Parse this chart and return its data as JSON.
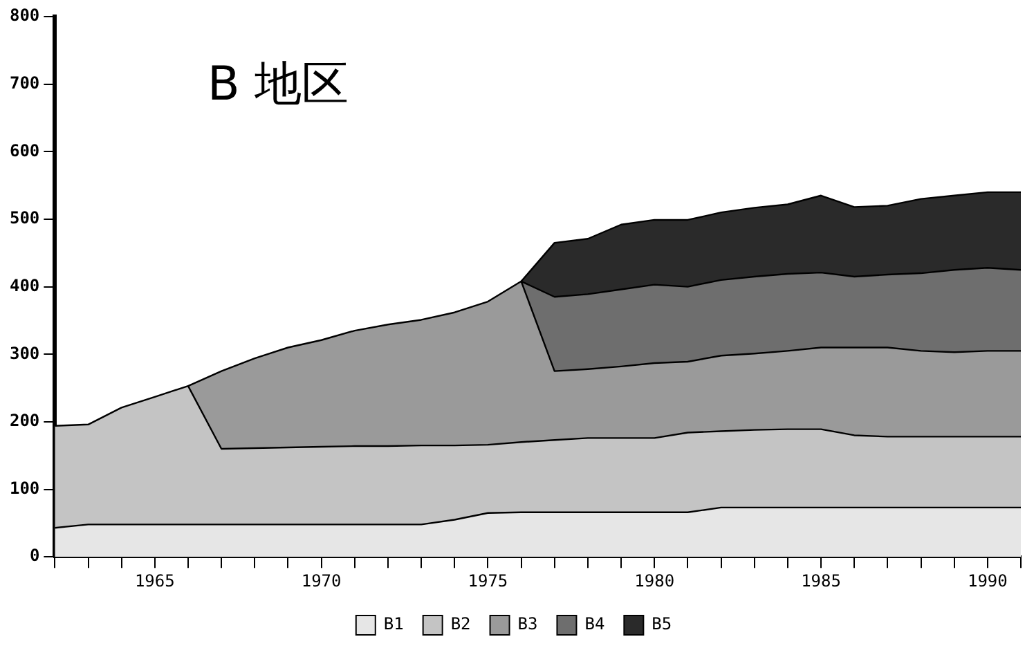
{
  "chart_data": {
    "type": "area",
    "title": "B 地区",
    "stacked": true,
    "legend": "bottom",
    "marker": "none",
    "x": [
      1962,
      1963,
      1964,
      1965,
      1966,
      1967,
      1968,
      1969,
      1970,
      1971,
      1972,
      1973,
      1974,
      1975,
      1976,
      1977,
      1978,
      1979,
      1980,
      1981,
      1982,
      1983,
      1984,
      1985,
      1986,
      1987,
      1988,
      1989,
      1990,
      1991
    ],
    "series": [
      {
        "name": "B1",
        "color": "#e6e6e6",
        "values": [
          43,
          48,
          48,
          48,
          48,
          48,
          48,
          48,
          48,
          48,
          48,
          48,
          55,
          65,
          66,
          66,
          66,
          66,
          66,
          66,
          73,
          73,
          73,
          73,
          73,
          73,
          73,
          73,
          73,
          73
        ]
      },
      {
        "name": "B2",
        "color": "#c4c4c4",
        "values": [
          151,
          148,
          173,
          189,
          205,
          112,
          113,
          114,
          115,
          116,
          116,
          117,
          110,
          101,
          104,
          107,
          110,
          110,
          110,
          118,
          113,
          115,
          116,
          116,
          107,
          105,
          105,
          105,
          105,
          105
        ]
      },
      {
        "name": "B3",
        "color": "#9a9a9a",
        "values": [
          null,
          null,
          null,
          null,
          0,
          115,
          133,
          148,
          158,
          171,
          180,
          186,
          197,
          212,
          238,
          102,
          102,
          106,
          111,
          105,
          112,
          113,
          116,
          121,
          130,
          132,
          127,
          125,
          127,
          127
        ]
      },
      {
        "name": "B4",
        "color": "#6e6e6e",
        "values": [
          null,
          null,
          null,
          null,
          null,
          null,
          null,
          null,
          null,
          null,
          null,
          null,
          null,
          null,
          0,
          110,
          111,
          114,
          116,
          111,
          112,
          114,
          114,
          111,
          105,
          108,
          115,
          122,
          123,
          120
        ]
      },
      {
        "name": "B5",
        "color": "#2a2a2a",
        "values": [
          null,
          null,
          null,
          null,
          null,
          null,
          null,
          null,
          null,
          null,
          null,
          null,
          null,
          null,
          0,
          80,
          82,
          96,
          96,
          99,
          100,
          102,
          103,
          114,
          103,
          102,
          110,
          110,
          112,
          115
        ]
      }
    ],
    "xlim": [
      1962,
      1991
    ],
    "xticks": [
      {
        "value": 1962,
        "label": null
      },
      {
        "value": 1963,
        "label": null
      },
      {
        "value": 1964,
        "label": null
      },
      1965,
      {
        "value": 1966,
        "label": null
      },
      {
        "value": 1967,
        "label": null
      },
      {
        "value": 1968,
        "label": null
      },
      {
        "value": 1969,
        "label": null
      },
      1970,
      {
        "value": 1971,
        "label": null
      },
      {
        "value": 1972,
        "label": null
      },
      {
        "value": 1973,
        "label": null
      },
      {
        "value": 1974,
        "label": null
      },
      1975,
      {
        "value": 1976,
        "label": null
      },
      {
        "value": 1977,
        "label": null
      },
      {
        "value": 1978,
        "label": null
      },
      {
        "value": 1979,
        "label": null
      },
      1980,
      {
        "value": 1981,
        "label": null
      },
      {
        "value": 1982,
        "label": null
      },
      {
        "value": 1983,
        "label": null
      },
      {
        "value": 1984,
        "label": null
      },
      1985,
      {
        "value": 1986,
        "label": null
      },
      {
        "value": 1987,
        "label": null
      },
      {
        "value": 1988,
        "label": null
      },
      {
        "value": 1989,
        "label": null
      },
      1990,
      {
        "value": 1991,
        "label": null
      }
    ],
    "ylim": [
      0,
      800
    ],
    "yticks": [
      0,
      100,
      200,
      300,
      400,
      500,
      600,
      700,
      800
    ],
    "grid": false
  }
}
